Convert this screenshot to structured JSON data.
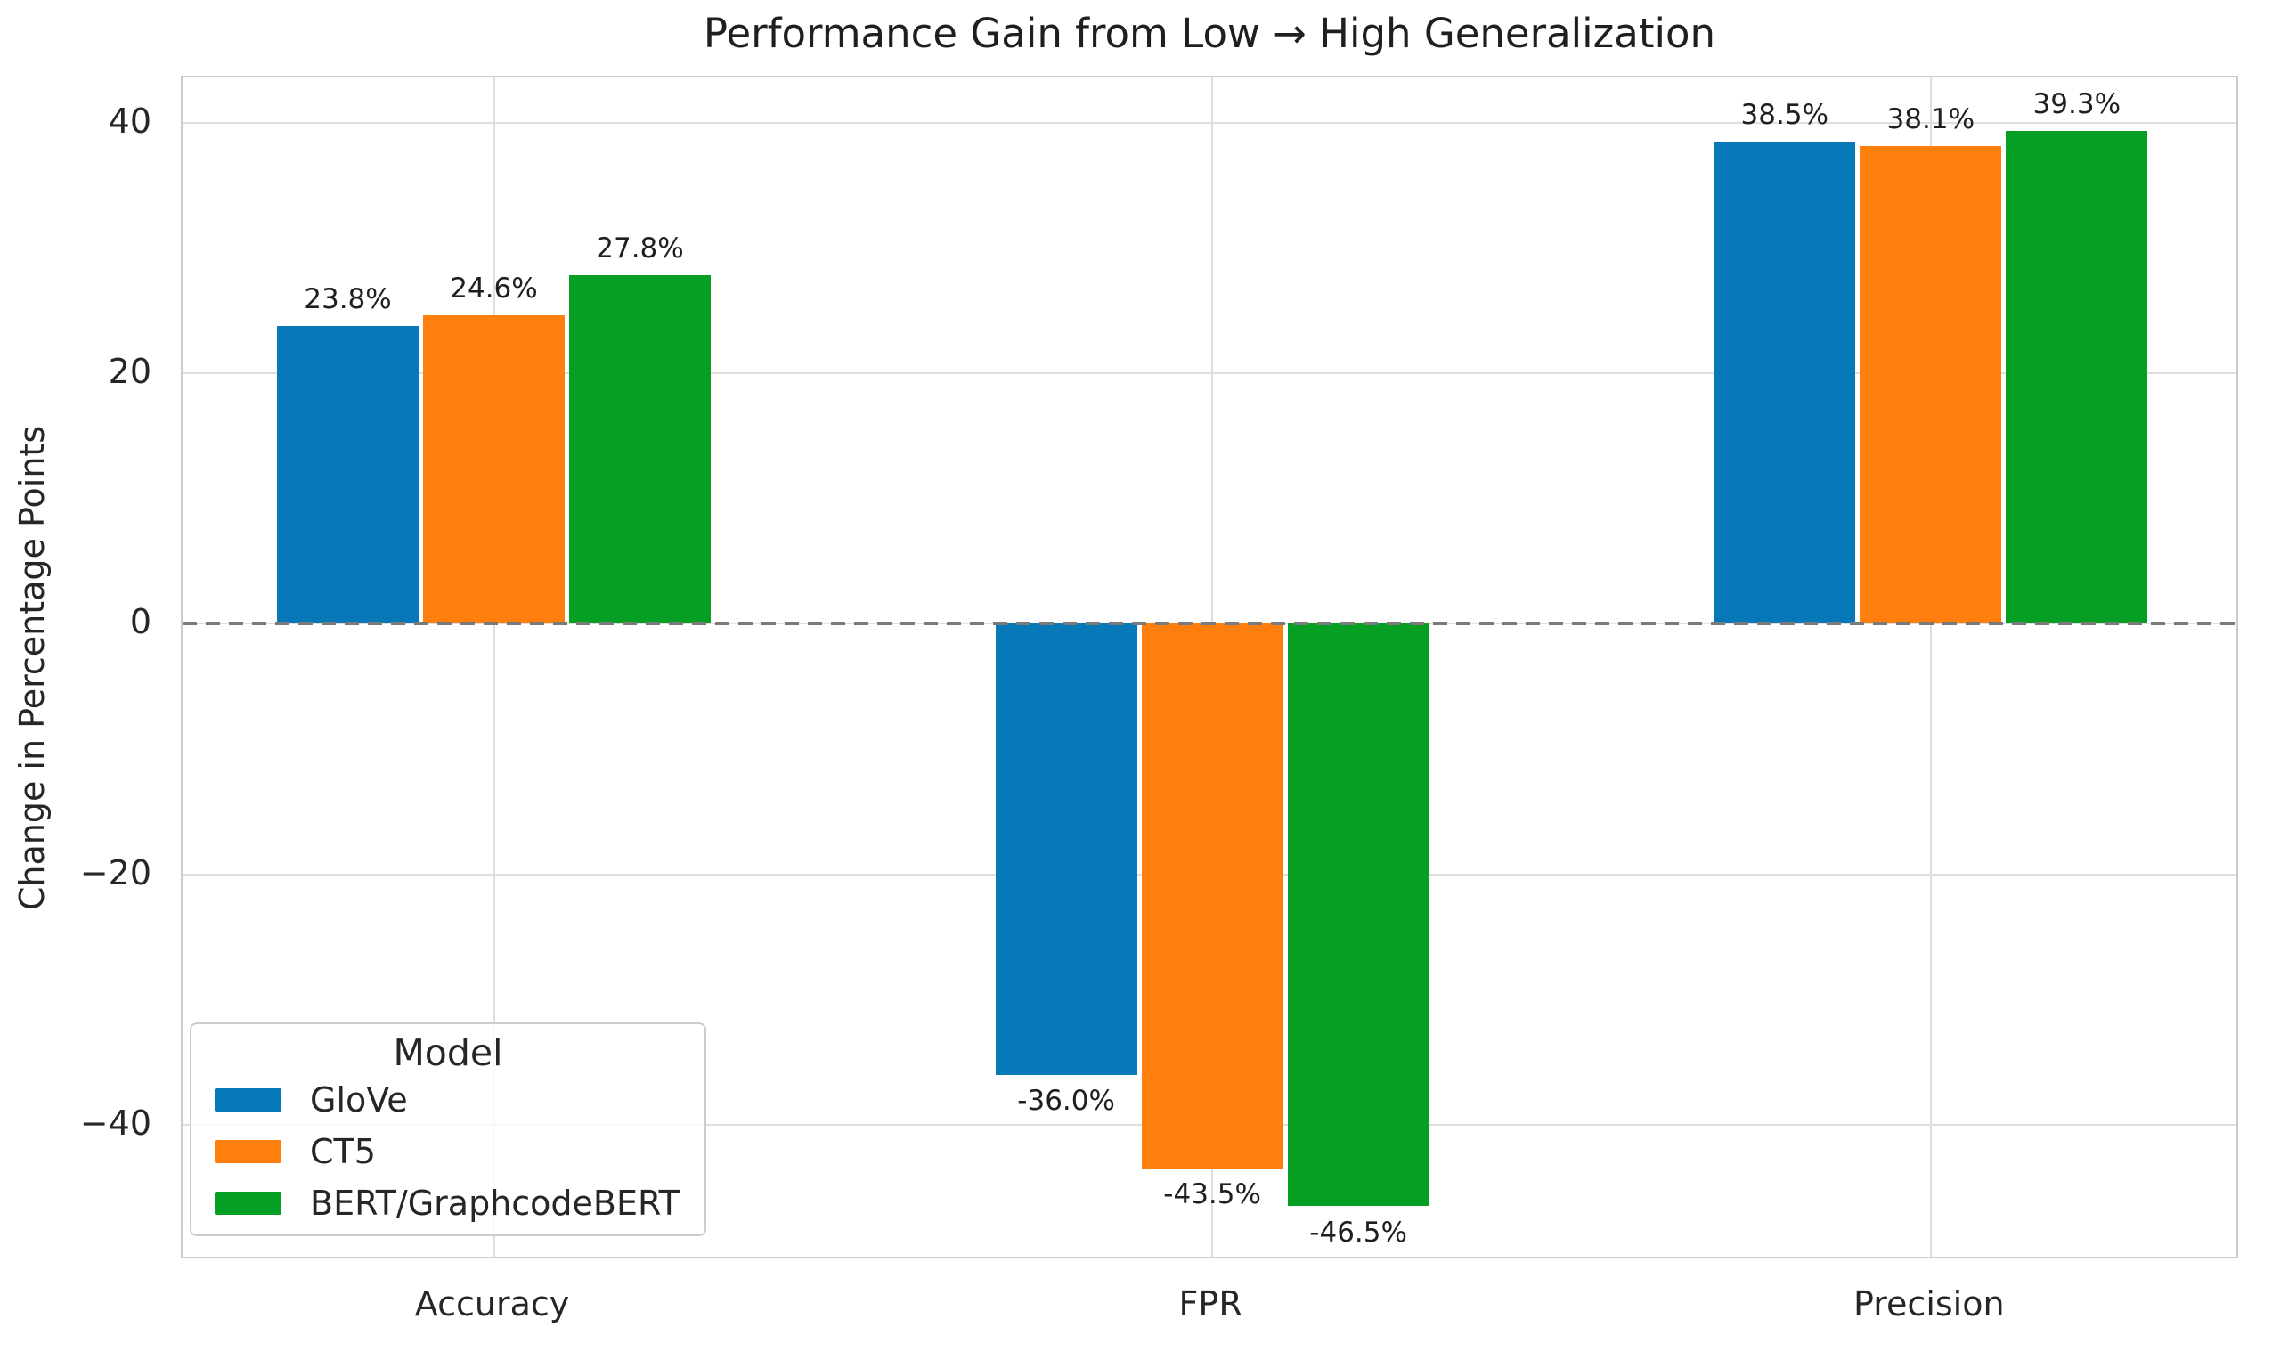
{
  "chart_data": {
    "type": "bar",
    "title": "Performance Gain from Low → High Generalization",
    "ylabel": "Change in Percentage Points",
    "xlabel": "",
    "categories": [
      "Accuracy",
      "FPR",
      "Precision"
    ],
    "series": [
      {
        "name": "GloVe",
        "color": "#0778b8",
        "values": [
          23.8,
          -36.0,
          38.5
        ],
        "value_labels": [
          "23.8%",
          "-36.0%",
          "38.5%"
        ]
      },
      {
        "name": "CT5",
        "color": "#ff7f0e",
        "values": [
          24.6,
          -43.5,
          38.1
        ],
        "value_labels": [
          "24.6%",
          "-43.5%",
          "38.1%"
        ]
      },
      {
        "name": "BERT/GraphcodeBERT",
        "color": "#05a023",
        "values": [
          27.8,
          -46.5,
          39.3
        ],
        "value_labels": [
          "27.8%",
          "-46.5%",
          "39.3%"
        ]
      }
    ],
    "yticks": [
      40,
      20,
      0,
      -20,
      -40
    ],
    "ytick_labels": [
      "40",
      "20",
      "0",
      "−20",
      "−40"
    ],
    "ylim": [
      -50.8,
      43.6
    ],
    "grid": true,
    "legend": {
      "title": "Model",
      "position": "lower left",
      "entries": [
        "GloVe",
        "CT5",
        "BERT/GraphcodeBERT"
      ]
    },
    "zero_line": {
      "y": 0,
      "style": "dashed",
      "color": "#7a7a7a"
    },
    "style_colors": {
      "gridline": "#dedede",
      "spine": "#cccccc",
      "text": "#262626",
      "background": "#ffffff"
    }
  }
}
